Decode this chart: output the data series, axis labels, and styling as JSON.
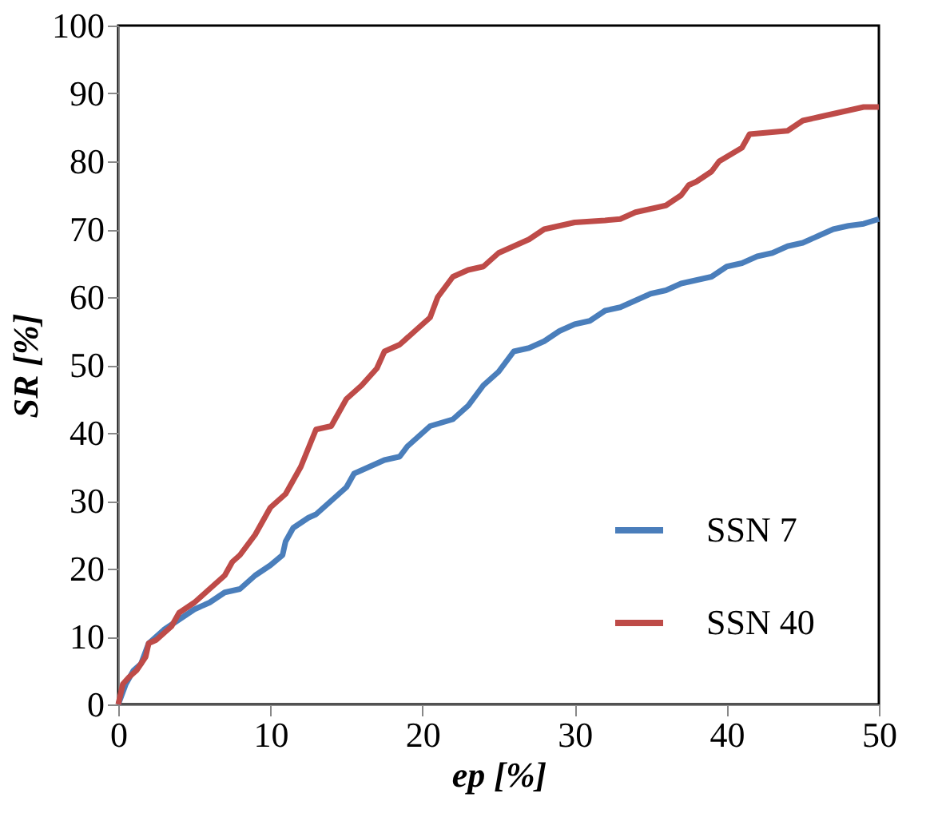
{
  "chart_data": {
    "type": "line",
    "xlabel": "ep [%]",
    "ylabel": "SR [%]",
    "xlim": [
      0,
      50
    ],
    "xticks": [
      0,
      10,
      20,
      30,
      40,
      50
    ],
    "ylim": [
      0,
      100
    ],
    "yticks": [
      0,
      10,
      20,
      30,
      40,
      50,
      60,
      70,
      80,
      90,
      100
    ],
    "grid": false,
    "legend": "bottom right",
    "marker": "none",
    "line_style": "solid",
    "series": [
      {
        "name": "SSN 7",
        "color": "#4a7ebb",
        "x": [
          0,
          0.5,
          1,
          1.5,
          2,
          3,
          4,
          5,
          6,
          7,
          8,
          8.5,
          9,
          10,
          10.8,
          11,
          11.5,
          12.5,
          13,
          14,
          15,
          15.5,
          16.5,
          17.5,
          18.5,
          19,
          20,
          20.5,
          22,
          23,
          24,
          25,
          26,
          27,
          28,
          29,
          30,
          31,
          32,
          33,
          34,
          35,
          36,
          37,
          38,
          39,
          40,
          41,
          42,
          43,
          44,
          45,
          46,
          47,
          48,
          49,
          50
        ],
        "values": [
          0,
          3,
          5,
          6,
          9,
          11,
          12.5,
          14,
          15,
          16.5,
          17,
          18,
          19,
          20.5,
          22,
          24,
          26,
          27.5,
          28,
          30,
          32,
          34,
          35,
          36,
          36.5,
          38,
          40,
          41,
          42,
          44,
          47,
          49,
          52,
          52.5,
          53.5,
          55,
          56,
          56.5,
          58,
          58.5,
          59.5,
          60.5,
          61,
          62,
          62.5,
          63,
          64.5,
          65,
          66,
          66.5,
          67.5,
          68,
          69,
          70,
          70.5,
          70.8,
          71.5
        ]
      },
      {
        "name": "SSN 40",
        "color": "#be4b48",
        "x": [
          0,
          0.3,
          0.7,
          1.2,
          1.8,
          2,
          2.5,
          3,
          3.5,
          4,
          5,
          6,
          7,
          7.5,
          8,
          9,
          10,
          11,
          11.5,
          12,
          13,
          14,
          14.5,
          15,
          16,
          17,
          17.5,
          18.5,
          19.5,
          20.5,
          21,
          22,
          23,
          24,
          25,
          26,
          27,
          28,
          30,
          32,
          33,
          34,
          36,
          37,
          37.5,
          38,
          39,
          39.5,
          41,
          41.5,
          44,
          45,
          46,
          47,
          48,
          49,
          50
        ],
        "values": [
          0,
          3,
          4,
          5,
          7,
          9,
          9.5,
          10.5,
          11.5,
          13.5,
          15,
          17,
          19,
          21,
          22,
          25,
          29,
          31,
          33,
          35,
          40.5,
          41,
          43,
          45,
          47,
          49.5,
          52,
          53,
          55,
          57,
          60,
          63,
          64,
          64.5,
          66.5,
          67.5,
          68.5,
          70,
          71,
          71.3,
          71.5,
          72.5,
          73.5,
          75,
          76.5,
          77,
          78.5,
          80,
          82,
          84,
          84.5,
          86,
          86.5,
          87,
          87.5,
          88,
          88
        ]
      }
    ]
  }
}
